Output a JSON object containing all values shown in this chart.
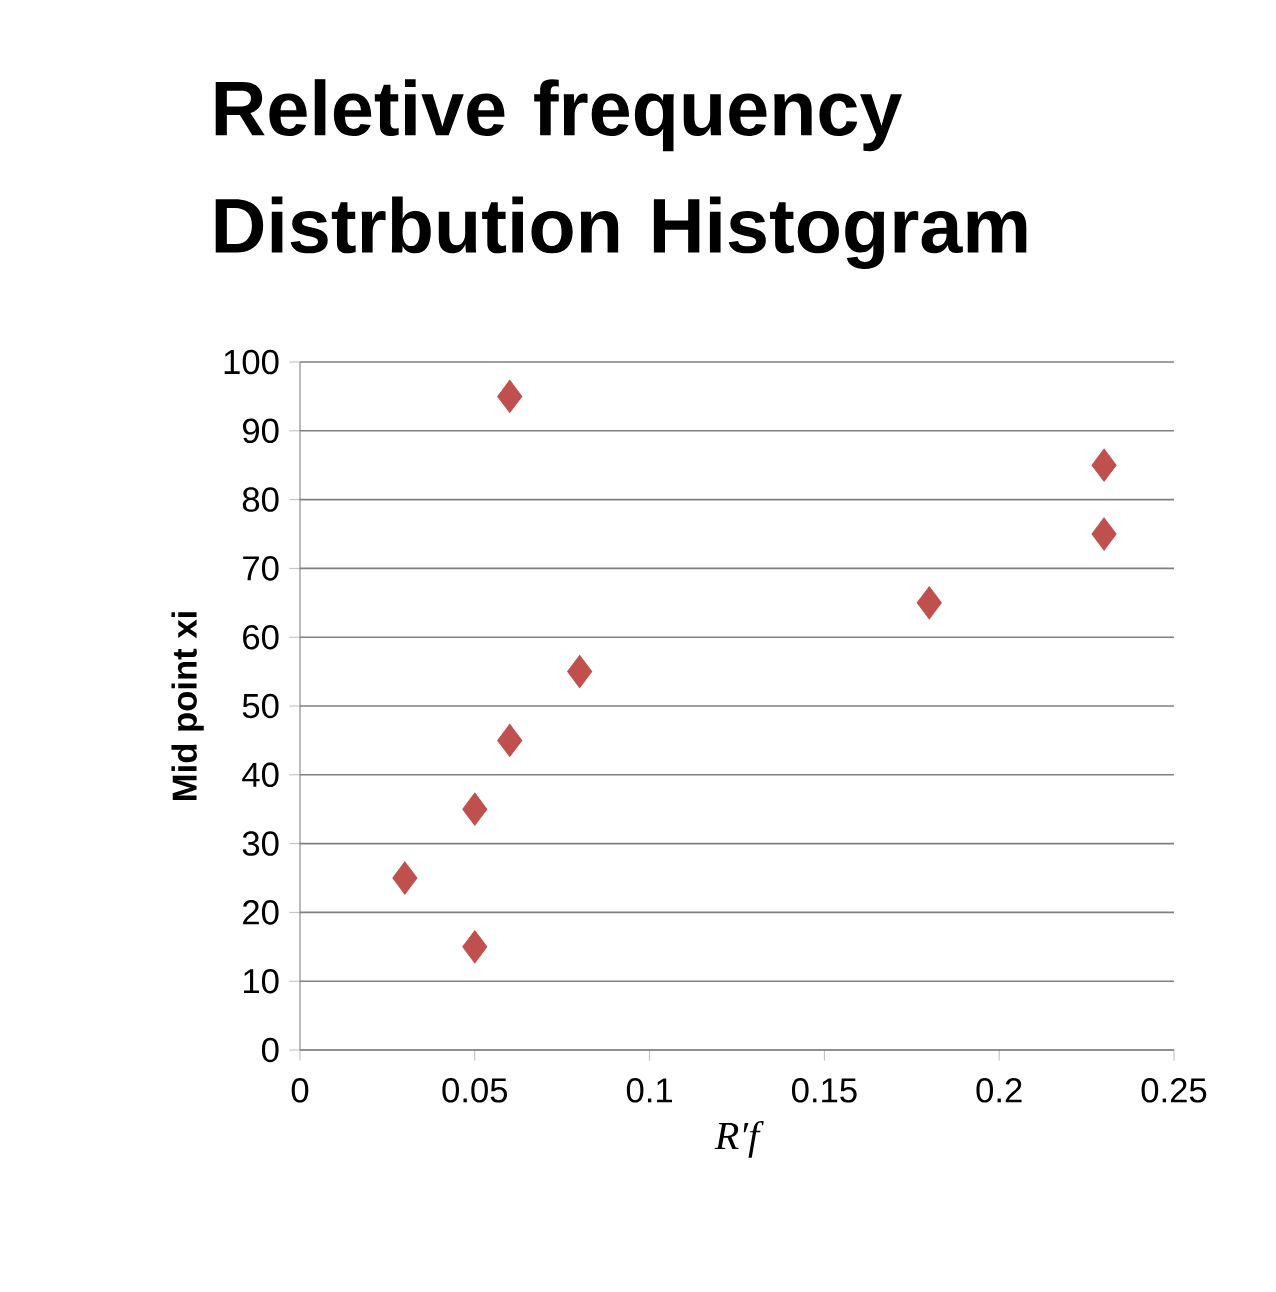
{
  "chart_data": {
    "type": "scatter",
    "title": "Reletive frequency Distrbution Histogram",
    "xlabel": "R′f",
    "ylabel": "Mid point  xi",
    "x": [
      0.03,
      0.05,
      0.05,
      0.06,
      0.06,
      0.08,
      0.18,
      0.23,
      0.23
    ],
    "values": [
      25,
      15,
      35,
      45,
      95,
      55,
      65,
      75,
      85
    ],
    "color": "#c0504d",
    "marker": "diamond",
    "grid": "y",
    "xlim": [
      0,
      0.25
    ],
    "xticks": [
      0,
      0.05,
      0.1,
      0.15,
      0.2,
      0.25
    ],
    "ylim": [
      0,
      100
    ],
    "yticks": [
      0,
      10,
      20,
      30,
      40,
      50,
      60,
      70,
      80,
      90,
      100
    ]
  }
}
